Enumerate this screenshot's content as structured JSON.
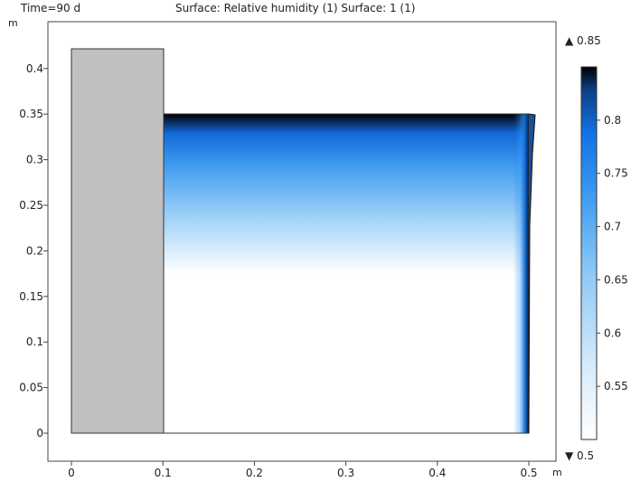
{
  "header": {
    "time_label": "Time=90 d",
    "title": "Surface: Relative humidity (1)  Surface: 1 (1)"
  },
  "chart_data": {
    "type": "heatmap",
    "title": "Surface: Relative humidity (1)  Surface: 1 (1)",
    "time": "Time=90 d",
    "x_unit": "m",
    "y_unit": "m",
    "xlim": [
      -0.025,
      0.525
    ],
    "ylim": [
      -0.03,
      0.45
    ],
    "x_ticks": [
      0,
      0.1,
      0.2,
      0.3,
      0.4,
      0.5
    ],
    "x_tick_labels": [
      "0",
      "0.1",
      "0.2",
      "0.3",
      "0.4",
      "0.5"
    ],
    "y_ticks": [
      0,
      0.05,
      0.1,
      0.15,
      0.2,
      0.25,
      0.3,
      0.35,
      0.4
    ],
    "y_tick_labels": [
      "0",
      "0.05",
      "0.1",
      "0.15",
      "0.2",
      "0.25",
      "0.3",
      "0.35",
      "0.4"
    ],
    "gray_block": {
      "x": [
        0,
        0.1
      ],
      "y": [
        0,
        0.42
      ]
    },
    "humidity_domain": {
      "x": [
        0.1,
        0.5
      ],
      "y": [
        0,
        0.35
      ]
    },
    "colorbar": {
      "min": 0.5,
      "max": 0.85,
      "max_label": "▲ 0.85",
      "min_label": "▼ 0.5",
      "ticks": [
        0.55,
        0.6,
        0.65,
        0.7,
        0.75,
        0.8
      ],
      "tick_labels": [
        "0.55",
        "0.6",
        "0.65",
        "0.7",
        "0.75",
        "0.8"
      ],
      "colors": [
        "#ffffff",
        "#d6eafb",
        "#8cc8f5",
        "#3f9cf0",
        "#1273e6",
        "#0b3f80",
        "#000000"
      ]
    },
    "grid": false
  }
}
